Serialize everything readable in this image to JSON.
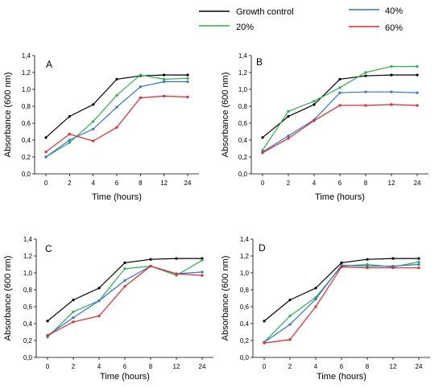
{
  "legend": [
    {
      "name": "Growth control",
      "color": "#000000"
    },
    {
      "name": "20%",
      "color": "#2bb24c"
    },
    {
      "name": "40%",
      "color": "#2a78c9"
    },
    {
      "name": "60%",
      "color": "#e8262b"
    }
  ],
  "chart_data": [
    {
      "type": "line",
      "label": "A",
      "categories": [
        "0",
        "2",
        "4",
        "6",
        "8",
        "12",
        "24"
      ],
      "xlabel": "Time  (hours)",
      "ylabel": "Absorbance  (600 nm)",
      "ylim": [
        0,
        1.4
      ],
      "yticks": [
        "0,0",
        "0,2",
        "0,4",
        "0,6",
        "0,8",
        "1,0",
        "1,2",
        "1,4"
      ],
      "series": [
        {
          "name": "Growth control",
          "color": "#000000",
          "values": [
            0.43,
            0.68,
            0.82,
            1.12,
            1.16,
            1.17,
            1.17
          ]
        },
        {
          "name": "20%",
          "color": "#2bb24c",
          "values": [
            0.2,
            0.37,
            0.62,
            0.93,
            1.17,
            1.12,
            1.13
          ]
        },
        {
          "name": "40%",
          "color": "#2a78c9",
          "values": [
            0.2,
            0.4,
            0.53,
            0.79,
            1.03,
            1.09,
            1.09
          ]
        },
        {
          "name": "60%",
          "color": "#e8262b",
          "values": [
            0.26,
            0.47,
            0.39,
            0.55,
            0.9,
            0.92,
            0.91
          ]
        }
      ]
    },
    {
      "type": "line",
      "label": "B",
      "categories": [
        "0",
        "2",
        "4",
        "6",
        "8",
        "12",
        "24"
      ],
      "xlabel": "Time  (hours)",
      "ylabel": "Absorbance  (600 nm)",
      "ylim": [
        0,
        1.4
      ],
      "yticks": [
        "0,0",
        "0,2",
        "0,4",
        "0,6",
        "0,8",
        "1,0",
        "1,2",
        "1,4"
      ],
      "series": [
        {
          "name": "Growth control",
          "color": "#000000",
          "values": [
            0.43,
            0.68,
            0.82,
            1.12,
            1.16,
            1.17,
            1.17
          ]
        },
        {
          "name": "20%",
          "color": "#2bb24c",
          "values": [
            0.28,
            0.74,
            0.86,
            1.02,
            1.2,
            1.27,
            1.27
          ]
        },
        {
          "name": "40%",
          "color": "#2a78c9",
          "values": [
            0.26,
            0.45,
            0.64,
            0.96,
            0.97,
            0.97,
            0.96
          ]
        },
        {
          "name": "60%",
          "color": "#e8262b",
          "values": [
            0.25,
            0.42,
            0.63,
            0.81,
            0.81,
            0.82,
            0.81
          ]
        }
      ]
    },
    {
      "type": "line",
      "label": "C",
      "categories": [
        "0",
        "2",
        "4",
        "6",
        "8",
        "12",
        "24"
      ],
      "xlabel": "Time  (hours)",
      "ylabel": "Absorbance  (600 nm)",
      "ylim": [
        0,
        1.4
      ],
      "yticks": [
        "0,0",
        "0,2",
        "0,4",
        "0,6",
        "0,8",
        "1,0",
        "1,2",
        "1,4"
      ],
      "series": [
        {
          "name": "Growth control",
          "color": "#000000",
          "values": [
            0.43,
            0.68,
            0.82,
            1.12,
            1.16,
            1.17,
            1.17
          ]
        },
        {
          "name": "20%",
          "color": "#2bb24c",
          "values": [
            0.24,
            0.54,
            0.67,
            1.05,
            1.08,
            0.97,
            1.15
          ]
        },
        {
          "name": "40%",
          "color": "#2a78c9",
          "values": [
            0.26,
            0.47,
            0.67,
            0.91,
            1.08,
            0.99,
            1.01
          ]
        },
        {
          "name": "60%",
          "color": "#e8262b",
          "values": [
            0.26,
            0.42,
            0.49,
            0.84,
            1.08,
            0.99,
            0.97
          ]
        }
      ]
    },
    {
      "type": "line",
      "label": "D",
      "categories": [
        "0",
        "2",
        "4",
        "6",
        "8",
        "12",
        "24"
      ],
      "xlabel": "Time  (hours)",
      "ylabel": "Absorbance  (600 nm)",
      "ylim": [
        0,
        1.4
      ],
      "yticks": [
        "0,0",
        "0,2",
        "0,4",
        "0,6",
        "0,8",
        "1,0",
        "1,2",
        "1,4"
      ],
      "series": [
        {
          "name": "Growth control",
          "color": "#000000",
          "values": [
            0.43,
            0.68,
            0.82,
            1.12,
            1.16,
            1.17,
            1.17
          ]
        },
        {
          "name": "20%",
          "color": "#2bb24c",
          "values": [
            0.18,
            0.49,
            0.71,
            1.08,
            1.1,
            1.07,
            1.13
          ]
        },
        {
          "name": "40%",
          "color": "#2a78c9",
          "values": [
            0.18,
            0.39,
            0.69,
            1.09,
            1.08,
            1.08,
            1.1
          ]
        },
        {
          "name": "60%",
          "color": "#e8262b",
          "values": [
            0.17,
            0.21,
            0.6,
            1.07,
            1.06,
            1.06,
            1.06
          ]
        }
      ]
    }
  ]
}
